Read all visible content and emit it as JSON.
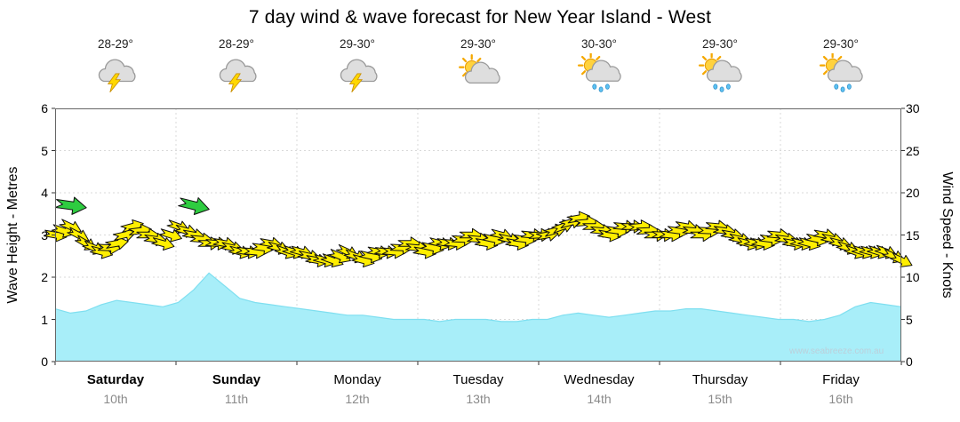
{
  "title": "7 day wind & wave forecast for New Year Island - West",
  "watermark": "www.seabreeze.com.au",
  "colors": {
    "wave_fill": "#a8eef9",
    "wave_stroke": "#7fdff0",
    "arrow_fill": "#ffee00",
    "arrow_green": "#2ecc40",
    "grid": "#d9d9d9",
    "axis": "#555555"
  },
  "axes": {
    "left_label": "Wave Height - Metres",
    "right_label": "Wind Speed - Knots",
    "left_ticks": [
      "0",
      "1",
      "2",
      "3",
      "4",
      "5",
      "6"
    ],
    "right_ticks": [
      "0",
      "5",
      "10",
      "15",
      "20",
      "25",
      "30"
    ]
  },
  "days": [
    {
      "name": "Saturday",
      "date": "10th",
      "temp": "28-29°",
      "icon": "storm",
      "weekend": true
    },
    {
      "name": "Sunday",
      "date": "11th",
      "temp": "28-29°",
      "icon": "storm",
      "weekend": true
    },
    {
      "name": "Monday",
      "date": "12th",
      "temp": "29-30°",
      "icon": "storm",
      "weekend": false
    },
    {
      "name": "Tuesday",
      "date": "13th",
      "temp": "29-30°",
      "icon": "sun-cloud",
      "weekend": false
    },
    {
      "name": "Wednesday",
      "date": "14th",
      "temp": "30-30°",
      "icon": "sun-showers",
      "weekend": false
    },
    {
      "name": "Thursday",
      "date": "15th",
      "temp": "29-30°",
      "icon": "sun-showers",
      "weekend": false
    },
    {
      "name": "Friday",
      "date": "16th",
      "temp": "29-30°",
      "icon": "sun-showers",
      "weekend": false
    }
  ],
  "chart_data": {
    "type": "area",
    "title": "7 day wind & wave forecast for New Year Island - West",
    "xlabel_days": [
      "Saturday 10th",
      "Sunday 11th",
      "Monday 12th",
      "Tuesday 13th",
      "Wednesday 14th",
      "Thursday 15th",
      "Friday 16th"
    ],
    "points_per_day": 8,
    "wave_ylim": [
      0,
      6
    ],
    "wind_ylim": [
      0,
      30
    ],
    "series": [
      {
        "name": "Wave Height (m)",
        "axis": "left",
        "values": [
          1.25,
          1.15,
          1.2,
          1.35,
          1.45,
          1.4,
          1.35,
          1.3,
          1.4,
          1.7,
          2.1,
          1.8,
          1.5,
          1.4,
          1.35,
          1.3,
          1.25,
          1.2,
          1.15,
          1.1,
          1.1,
          1.05,
          1.0,
          1.0,
          1.0,
          0.95,
          1.0,
          1.0,
          1.0,
          0.95,
          0.95,
          1.0,
          1.0,
          1.1,
          1.15,
          1.1,
          1.05,
          1.1,
          1.15,
          1.2,
          1.2,
          1.25,
          1.25,
          1.2,
          1.15,
          1.1,
          1.05,
          1.0,
          1.0,
          0.95,
          1.0,
          1.1,
          1.3,
          1.4,
          1.35,
          1.3
        ]
      },
      {
        "name": "Wind Speed (knots)",
        "axis": "right",
        "values": [
          15,
          16,
          14,
          13,
          14,
          16,
          15,
          14,
          16,
          15,
          14,
          14,
          13,
          13,
          14,
          13,
          13,
          12,
          12,
          13,
          12,
          13,
          13,
          14,
          13,
          14,
          14,
          15,
          14,
          15,
          14,
          15,
          15,
          16,
          17,
          16,
          15,
          16,
          16,
          15,
          15,
          16,
          15,
          16,
          15,
          14,
          14,
          15,
          14,
          14,
          15,
          14,
          13,
          13,
          13,
          12
        ]
      },
      {
        "name": "Wind Direction (deg cw from E)",
        "values": [
          10,
          25,
          30,
          15,
          -10,
          -15,
          0,
          15,
          20,
          10,
          0,
          10,
          15,
          5,
          10,
          20,
          15,
          10,
          20,
          25,
          15,
          10,
          5,
          0,
          10,
          15,
          5,
          0,
          10,
          15,
          10,
          5,
          -10,
          -20,
          -10,
          0,
          10,
          5,
          -5,
          0,
          5,
          10,
          0,
          5,
          10,
          15,
          10,
          5,
          10,
          15,
          10,
          15,
          20,
          15,
          20,
          25
        ]
      }
    ],
    "green_arrows": [
      {
        "index": 1,
        "knots": 18.5,
        "dir_deg": 8
      },
      {
        "index": 9,
        "knots": 18.5,
        "dir_deg": 14
      }
    ]
  }
}
